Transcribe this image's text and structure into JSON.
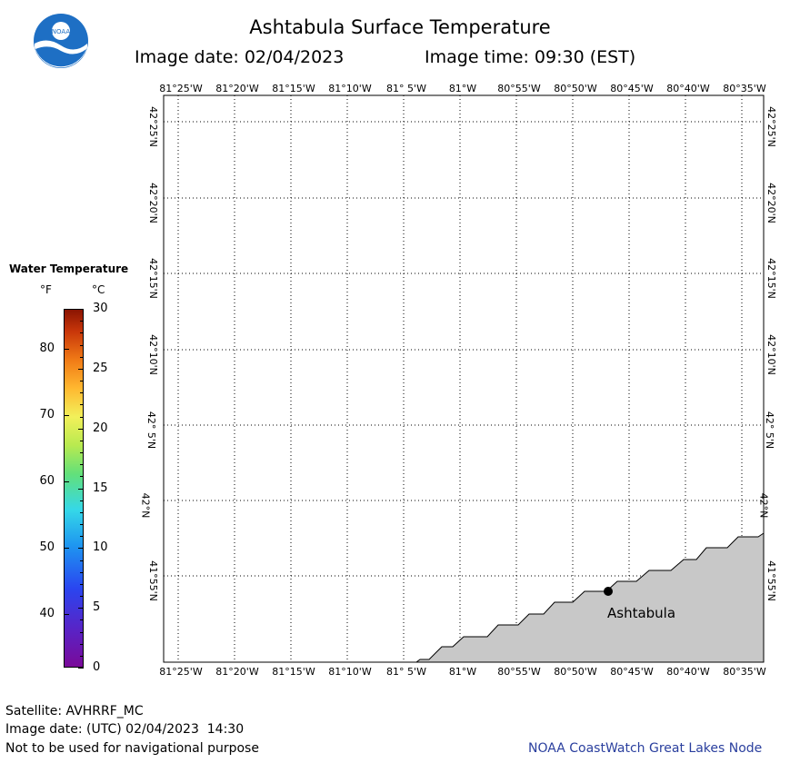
{
  "header": {
    "title": "Ashtabula Surface Temperature",
    "image_date_text": "Image date: 02/04/2023",
    "image_time_text": "Image time: 09:30 (EST)"
  },
  "logo": {
    "text": "NOAA",
    "icon": "noaa-logo-icon"
  },
  "map": {
    "lon_labels": [
      "81°25'W",
      "81°20'W",
      "81°15'W",
      "81°10'W",
      "81° 5'W",
      "81°W",
      "80°55'W",
      "80°50'W",
      "80°45'W",
      "80°40'W",
      "80°35'W"
    ],
    "lat_labels": [
      "42°25'N",
      "42°20'N",
      "42°15'N",
      "42°10'N",
      "42° 5'N",
      "42°N",
      "41°55'N"
    ],
    "land_color": "#c8c8c8",
    "water_color": "#ffffff",
    "city": {
      "name": "Ashtabula"
    }
  },
  "legend": {
    "title": "Water Temperature",
    "unit_f": "°F",
    "unit_c": "°C",
    "f_ticks": [
      "80",
      "70",
      "60",
      "50",
      "40"
    ],
    "c_ticks": [
      "30",
      "25",
      "20",
      "15",
      "10",
      "5",
      "0"
    ]
  },
  "footer": {
    "satellite": "Satellite: AVHRRF_MC",
    "utc_date": "Image date: (UTC) 02/04/2023  14:30",
    "disclaimer": "Not to be used for navigational purpose",
    "credit": "NOAA CoastWatch Great Lakes Node",
    "credit_color": "#2a3f9e"
  }
}
